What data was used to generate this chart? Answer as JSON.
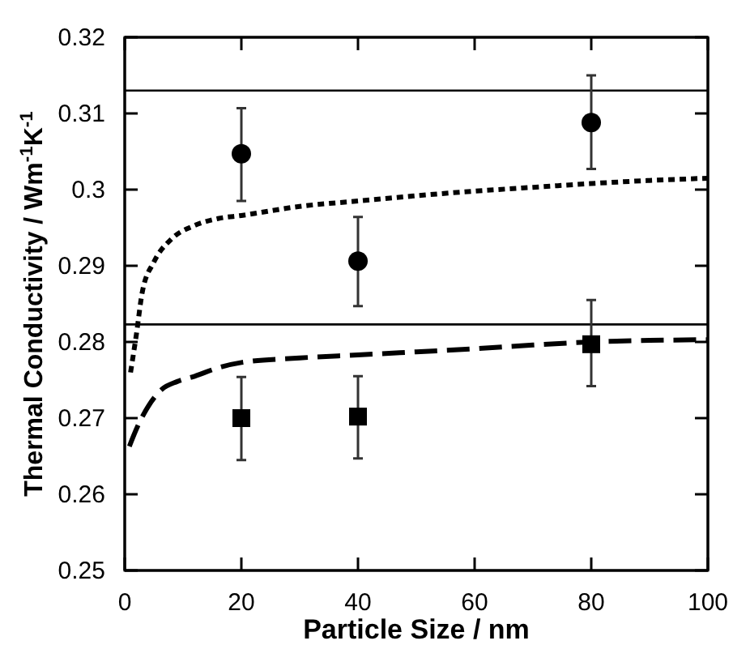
{
  "chart_data": {
    "type": "scatter",
    "xlabel": "Particle Size / nm",
    "ylabel": "Thermal Conductivity / Wm$^{-1}$K$^{-1}$",
    "xlim": [
      0,
      100
    ],
    "xticks": [
      0,
      20,
      40,
      60,
      80,
      100
    ],
    "ylim": [
      0.25,
      0.32
    ],
    "yticks": [
      0.25,
      0.26,
      0.27,
      0.28,
      0.29,
      {
        "value": 0.3,
        "label": "0.3"
      },
      0.31,
      0.32
    ],
    "grid": false,
    "ref_lines": [
      {
        "axis": "y",
        "value": 0.313,
        "color": "#000000",
        "line_style": "solid"
      },
      {
        "axis": "y",
        "value": 0.2823,
        "color": "#000000",
        "line_style": "solid"
      }
    ],
    "series": [
      {
        "marker": "circle",
        "color": "#000000",
        "x": [
          20,
          40,
          80
        ],
        "values": [
          0.3047,
          0.2906,
          0.3088
        ],
        "errors": [
          [
            0.2985,
            0.3107
          ],
          [
            0.2847,
            0.2964
          ],
          [
            0.3027,
            0.315
          ]
        ]
      },
      {
        "marker": "square",
        "color": "#000000",
        "x": [
          20,
          40,
          80
        ],
        "values": [
          0.27,
          0.2702,
          0.2797
        ],
        "errors": [
          [
            0.2645,
            0.2754
          ],
          [
            0.2647,
            0.2755
          ],
          [
            0.2742,
            0.2855
          ]
        ]
      },
      {
        "type": "line",
        "line_style": "dotted",
        "color": "#000000",
        "x": [
          1,
          2,
          3,
          5,
          8,
          12,
          16,
          20,
          30,
          40,
          50,
          60,
          70,
          80,
          90,
          100
        ],
        "values": [
          0.276,
          0.281,
          0.2865,
          0.2905,
          0.2935,
          0.2953,
          0.2962,
          0.2966,
          0.2978,
          0.2985,
          0.2992,
          0.2998,
          0.3003,
          0.3008,
          0.3012,
          0.3015
        ]
      },
      {
        "type": "line",
        "line_style": "dashed",
        "color": "#000000",
        "x": [
          0.8,
          2.2,
          4,
          6.4,
          9,
          12,
          16,
          20,
          30,
          40,
          50,
          60,
          70,
          80,
          90,
          100
        ],
        "values": [
          0.2663,
          0.2689,
          0.2715,
          0.2738,
          0.2748,
          0.2755,
          0.2766,
          0.2773,
          0.2779,
          0.2783,
          0.2787,
          0.2791,
          0.2796,
          0.28,
          0.2802,
          0.2803
        ]
      }
    ]
  }
}
